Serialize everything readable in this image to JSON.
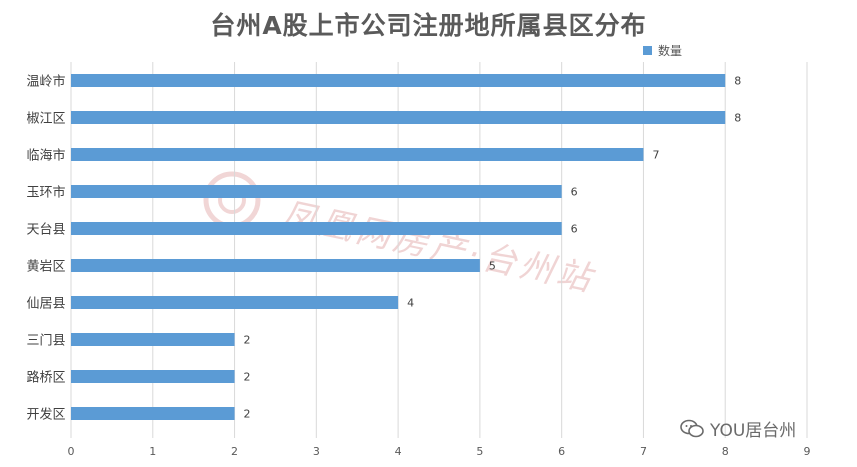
{
  "chart_data": {
    "type": "bar",
    "orientation": "horizontal",
    "title": "台州A股上市公司注册地所属县区分布",
    "categories": [
      "温岭市",
      "椒江区",
      "临海市",
      "玉环市",
      "天台县",
      "黄岩区",
      "仙居县",
      "三门县",
      "路桥区",
      "开发区"
    ],
    "series": [
      {
        "name": "数量",
        "values": [
          8,
          8,
          7,
          6,
          6,
          5,
          4,
          2,
          2,
          2
        ],
        "color": "#5b9bd5"
      }
    ],
    "xlim": [
      0,
      9
    ],
    "x_ticks": [
      0,
      1,
      2,
      3,
      4,
      5,
      6,
      7,
      8,
      9
    ],
    "grid": true,
    "legend_position": "top-right",
    "data_labels": true
  },
  "watermark": {
    "text": "凤凰网房产·台州站"
  },
  "footer": {
    "icon": "wechat-icon",
    "text": "YOU居台州"
  }
}
